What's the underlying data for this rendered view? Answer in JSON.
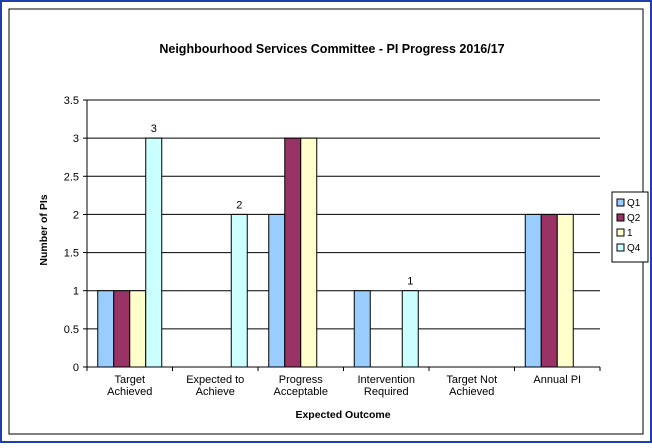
{
  "chart_data": {
    "type": "bar",
    "title": "Neighbourhood Services Committee - PI Progress 2016/17",
    "xlabel": "Expected Outcome",
    "ylabel": "Number of PIs",
    "ylim": [
      0,
      3.5
    ],
    "yticks": [
      "0",
      "0.5",
      "1",
      "1.5",
      "2",
      "2.5",
      "3",
      "3.5"
    ],
    "ytick_values": [
      0,
      0.5,
      1,
      1.5,
      2,
      2.5,
      3,
      3.5
    ],
    "grid": true,
    "legend_position": "right",
    "categories": [
      [
        "Target",
        "Achieved"
      ],
      [
        "Expected to",
        "Achieve"
      ],
      [
        "Progress",
        "Acceptable"
      ],
      [
        "Intervention",
        "Required"
      ],
      [
        "Target Not",
        "Achieved"
      ],
      [
        "Annual PI"
      ]
    ],
    "series": [
      {
        "name": "Q1",
        "color": "#99ccff",
        "values": [
          1,
          0,
          2,
          1,
          0,
          2
        ]
      },
      {
        "name": "Q2",
        "color": "#993366",
        "values": [
          1,
          0,
          3,
          0,
          0,
          2
        ]
      },
      {
        "name": "1",
        "color": "#ffffcc",
        "values": [
          1,
          0,
          3,
          0,
          0,
          2
        ]
      },
      {
        "name": "Q4",
        "color": "#ccffff",
        "values": [
          3,
          2,
          0,
          1,
          0,
          0
        ]
      }
    ],
    "data_labels": [
      {
        "category_index": 0,
        "series_index": 3,
        "text": "3"
      },
      {
        "category_index": 1,
        "series_index": 3,
        "text": "2"
      },
      {
        "category_index": 3,
        "series_index": 3,
        "text": "1"
      }
    ]
  }
}
